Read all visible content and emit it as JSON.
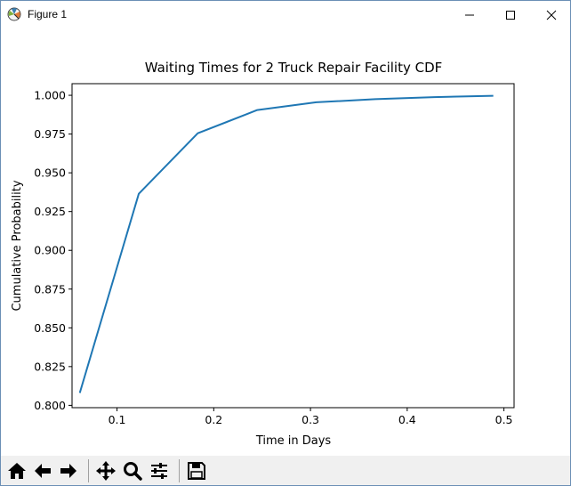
{
  "window": {
    "title": "Figure 1",
    "icons": [
      "matplotlib-logo-icon",
      "minimize-icon",
      "maximize-icon",
      "close-icon"
    ]
  },
  "toolbar": {
    "buttons": [
      {
        "name": "home",
        "icon": "home-icon"
      },
      {
        "name": "back",
        "icon": "arrow-left-icon"
      },
      {
        "name": "forward",
        "icon": "arrow-right-icon"
      },
      {
        "name": "pan",
        "icon": "move-icon"
      },
      {
        "name": "zoom",
        "icon": "magnifier-icon"
      },
      {
        "name": "subplots",
        "icon": "sliders-icon"
      },
      {
        "name": "save",
        "icon": "floppy-disk-icon"
      }
    ]
  },
  "chart_data": {
    "type": "line",
    "title": "Waiting Times for 2 Truck Repair Facility CDF",
    "xlabel": "Time in Days",
    "ylabel": "Cumulative Probability",
    "xlim": [
      0.0535,
      0.5105
    ],
    "ylim": [
      0.7985,
      1.0075
    ],
    "xticks": [
      0.1,
      0.2,
      0.3,
      0.4,
      0.5
    ],
    "xtick_labels": [
      "0.1",
      "0.2",
      "0.3",
      "0.4",
      "0.5"
    ],
    "yticks": [
      0.8,
      0.825,
      0.85,
      0.875,
      0.9,
      0.925,
      0.95,
      0.975,
      1.0
    ],
    "ytick_labels": [
      "0.800",
      "0.825",
      "0.850",
      "0.875",
      "0.900",
      "0.925",
      "0.950",
      "0.975",
      "1.000"
    ],
    "grid": false,
    "series": [
      {
        "color": "#1f77b4",
        "x": [
          0.0615,
          0.1225,
          0.1835,
          0.245,
          0.306,
          0.367,
          0.428,
          0.489
        ],
        "y": [
          0.808,
          0.9365,
          0.9755,
          0.9905,
          0.9955,
          0.9975,
          0.9988,
          0.9997
        ]
      }
    ]
  }
}
